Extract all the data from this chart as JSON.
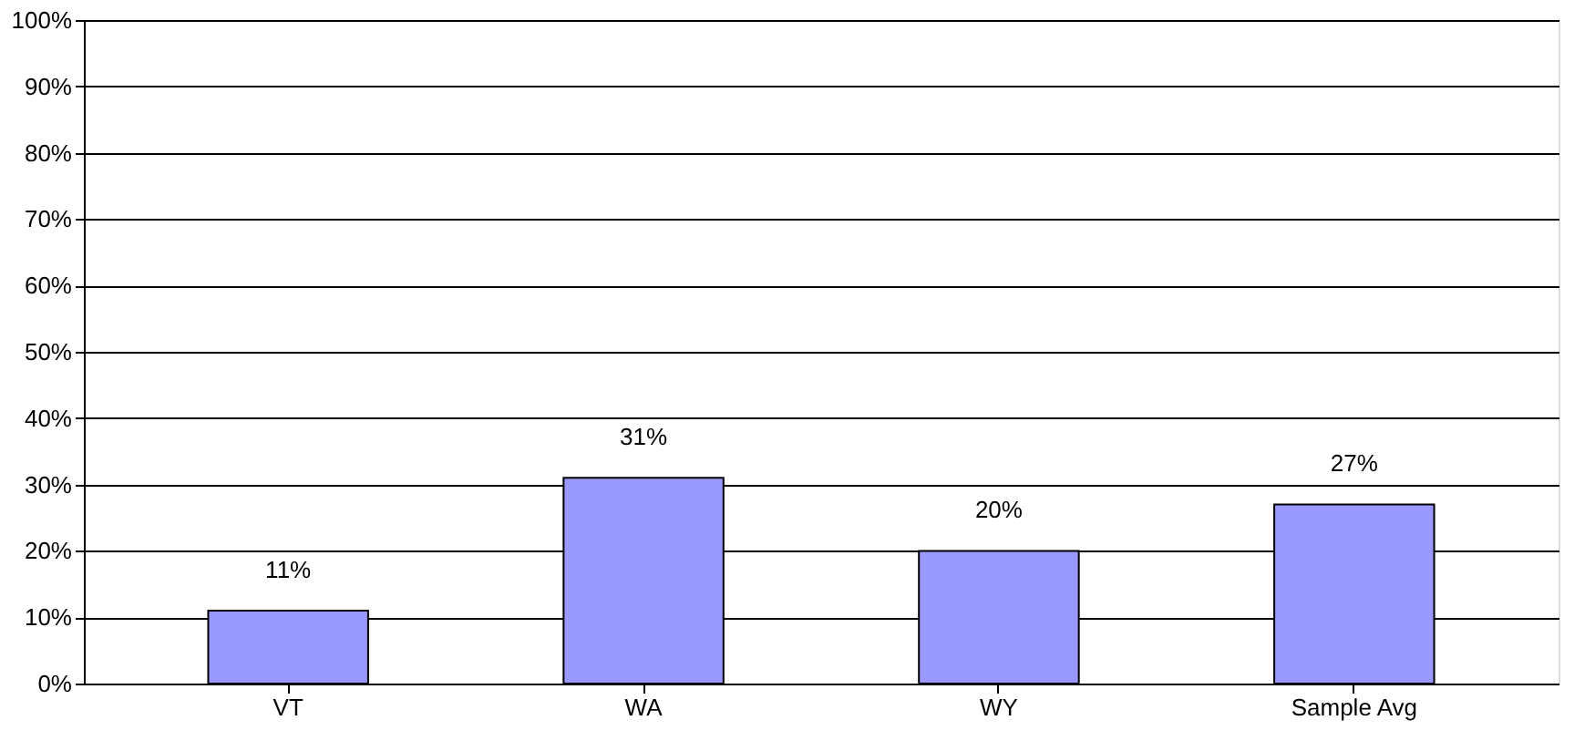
{
  "chart_data": {
    "type": "bar",
    "categories": [
      "VT",
      "WA",
      "WY",
      "Sample Avg"
    ],
    "values": [
      11,
      31,
      20,
      27
    ],
    "value_labels": [
      "11%",
      "31%",
      "20%",
      "27%"
    ],
    "color": "#9999ff",
    "ylim": [
      0,
      100
    ],
    "yticks": [
      {
        "value": 0,
        "label": "0%"
      },
      {
        "value": 10,
        "label": "10%"
      },
      {
        "value": 20,
        "label": "20%"
      },
      {
        "value": 30,
        "label": "30%"
      },
      {
        "value": 40,
        "label": "40%"
      },
      {
        "value": 50,
        "label": "50%"
      },
      {
        "value": 60,
        "label": "60%"
      },
      {
        "value": 70,
        "label": "70%"
      },
      {
        "value": 80,
        "label": "80%"
      },
      {
        "value": 90,
        "label": "90%"
      },
      {
        "value": 100,
        "label": "100%"
      }
    ],
    "grid": "y"
  }
}
